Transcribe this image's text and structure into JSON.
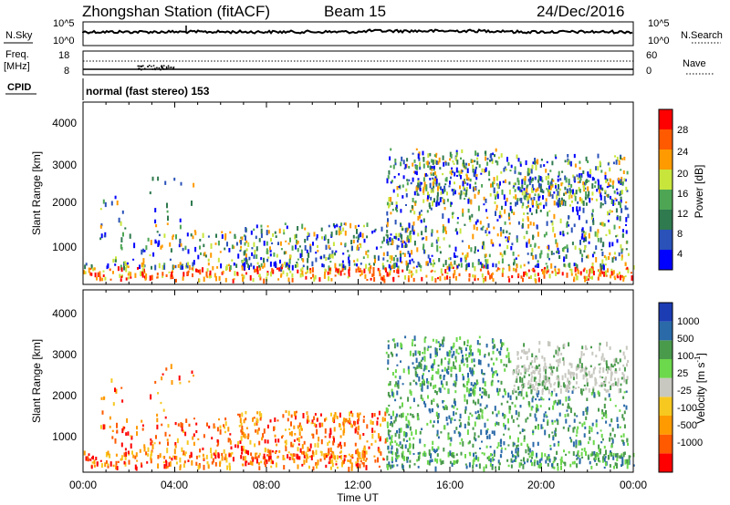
{
  "header": {
    "station": "Zhongshan Station (fitACF)",
    "beam": "Beam 15",
    "date": "24/Dec/2016"
  },
  "noise_panel": {
    "left_label": "N.Sky",
    "right_label": "N.Search",
    "left_ticks": [
      "10^5",
      "10^0"
    ],
    "right_ticks": [
      "10^5",
      "10^0"
    ]
  },
  "freq_panel": {
    "left_label_line1": "Freq.",
    "left_label_line2": "[MHz]",
    "left_ticks": [
      "18",
      "8"
    ],
    "right_ticks": [
      "60",
      "0"
    ],
    "right_label": "Nave"
  },
  "cpid": {
    "label": "CPID",
    "mode": "normal (fast stereo) 153"
  },
  "colors": {
    "power": [
      "#0000ff",
      "#2a52b8",
      "#2f7a4e",
      "#4ea655",
      "#c8e53c",
      "#ff9a00",
      "#ff5a00",
      "#ff0000"
    ],
    "velocity": [
      "#ff0000",
      "#ff5a00",
      "#ff9a00",
      "#f7c820",
      "#c8c8c0",
      "#6cd84b",
      "#4a9a4c",
      "#2a6aa8",
      "#1c3cb4"
    ]
  },
  "chart_data": [
    {
      "type": "heatmap",
      "title": "",
      "xlabel": "Time UT",
      "ylabel": "Slant Range [km]",
      "xlim": [
        "00:00",
        "24:00"
      ],
      "ylim": [
        180,
        4600
      ],
      "x_ticks": [
        "00:00",
        "04:00",
        "08:00",
        "12:00",
        "16:00",
        "20:00",
        "00:00"
      ],
      "y_ticks": [
        "1000",
        "2000",
        "3000",
        "4000"
      ],
      "colorbar": {
        "label": "Power [dB]",
        "min": 0,
        "max": 32,
        "ticks": [
          "4",
          "8",
          "12",
          "16",
          "20",
          "24",
          "28"
        ]
      },
      "grid": false
    },
    {
      "type": "heatmap",
      "title": "",
      "xlabel": "Time UT",
      "ylabel": "Slant Range [km]",
      "xlim": [
        "00:00",
        "24:00"
      ],
      "ylim": [
        180,
        4600
      ],
      "x_ticks": [
        "00:00",
        "04:00",
        "08:00",
        "12:00",
        "16:00",
        "20:00",
        "00:00"
      ],
      "y_ticks": [
        "1000",
        "2000",
        "3000",
        "4000"
      ],
      "colorbar": {
        "label": "Velocity [m s^-1]",
        "ticks": [
          "1000",
          "500",
          "100",
          "25",
          "-25",
          "-100",
          "-500",
          "-1000"
        ]
      },
      "grid": false
    }
  ]
}
